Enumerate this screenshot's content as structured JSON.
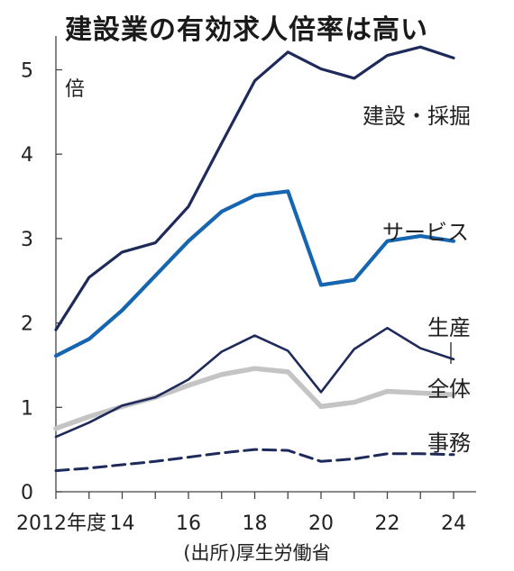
{
  "chart_data": {
    "type": "line",
    "title": "建設業の有効求人倍率は高い",
    "ylabel": "倍",
    "xlabel": "",
    "source": "(出所)厚生労働省",
    "ylim": [
      0,
      5.4
    ],
    "xlim": [
      2012,
      2024
    ],
    "grid": false,
    "y_ticks": [
      {
        "value": 0,
        "label": "0"
      },
      {
        "value": 1,
        "label": "1"
      },
      {
        "value": 2,
        "label": "2"
      },
      {
        "value": 3,
        "label": "3"
      },
      {
        "value": 4,
        "label": "4"
      },
      {
        "value": 5,
        "label": "5"
      }
    ],
    "x_ticks": [
      {
        "value": 2012,
        "label": "2012年度"
      },
      {
        "value": 2014,
        "label": "14"
      },
      {
        "value": 2016,
        "label": "16"
      },
      {
        "value": 2018,
        "label": "18"
      },
      {
        "value": 2020,
        "label": "20"
      },
      {
        "value": 2022,
        "label": "22"
      },
      {
        "value": 2024,
        "label": "24"
      }
    ],
    "x": [
      2012,
      2013,
      2014,
      2015,
      2016,
      2017,
      2018,
      2019,
      2020,
      2021,
      2022,
      2023,
      2024
    ],
    "series": [
      {
        "name": "建設・採掘",
        "color": "#1e2a5a",
        "width": 3.2,
        "dash": "",
        "values": [
          1.92,
          2.54,
          2.84,
          2.95,
          3.38,
          4.13,
          4.87,
          5.21,
          5.01,
          4.9,
          5.17,
          5.27,
          5.14
        ]
      },
      {
        "name": "サービス",
        "color": "#1565b0",
        "width": 4.2,
        "dash": "",
        "values": [
          1.61,
          1.81,
          2.15,
          2.56,
          2.97,
          3.32,
          3.51,
          3.56,
          2.45,
          2.51,
          2.97,
          3.03,
          2.97
        ]
      },
      {
        "name": "生産",
        "color": "#1e2a5a",
        "width": 2.6,
        "dash": "",
        "values": [
          0.65,
          0.82,
          1.02,
          1.12,
          1.33,
          1.66,
          1.85,
          1.67,
          1.18,
          1.69,
          1.94,
          1.7,
          1.57
        ]
      },
      {
        "name": "全体",
        "color": "#c4c4c4",
        "width": 5.5,
        "dash": "",
        "values": [
          0.75,
          0.89,
          1.01,
          1.12,
          1.26,
          1.39,
          1.46,
          1.42,
          1.01,
          1.06,
          1.19,
          1.17,
          1.15
        ]
      },
      {
        "name": "事務",
        "color": "#1e2a5a",
        "width": 3.0,
        "dash": "14,7",
        "values": [
          0.25,
          0.28,
          0.32,
          0.36,
          0.41,
          0.46,
          0.5,
          0.49,
          0.36,
          0.39,
          0.45,
          0.45,
          0.44
        ]
      }
    ]
  }
}
